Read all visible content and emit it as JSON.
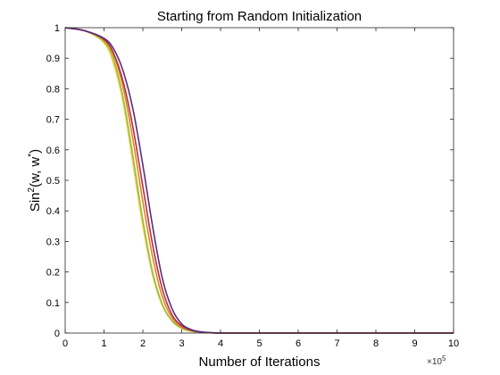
{
  "chart_data": {
    "type": "line",
    "title": "Starting from Random Initialization",
    "xlabel": "Number of Iterations",
    "ylabel_base": "Sin",
    "ylabel_sup": "2",
    "ylabel_rest": "(w, w",
    "ylabel_sup2": "*",
    "ylabel_end": ")",
    "x_multiplier_base": "×10",
    "x_multiplier_exp": "5",
    "xlim": [
      0,
      10
    ],
    "ylim": [
      0,
      1
    ],
    "xticks": [
      0,
      1,
      2,
      3,
      4,
      5,
      6,
      7,
      8,
      9,
      10
    ],
    "yticks": [
      0,
      0.1,
      0.2,
      0.3,
      0.4,
      0.5,
      0.6,
      0.7,
      0.8,
      0.9,
      1
    ],
    "grid": false,
    "x": [
      0,
      0.5,
      1.0,
      1.25,
      1.5,
      1.75,
      2.0,
      2.25,
      2.5,
      2.75,
      3.0,
      3.25,
      3.5,
      3.75,
      4.0,
      4.5,
      5,
      6,
      7,
      8,
      9,
      10
    ],
    "series": [
      {
        "color": "#f2cf4a",
        "values": [
          1.0,
          0.99,
          0.95,
          0.88,
          0.75,
          0.55,
          0.35,
          0.19,
          0.09,
          0.04,
          0.015,
          0.006,
          0.003,
          0.001,
          0.0,
          0.0,
          0.0,
          0.0,
          0.0,
          0.0,
          0.0,
          0.0
        ]
      },
      {
        "color": "#9bbd3a",
        "values": [
          1.0,
          0.99,
          0.955,
          0.895,
          0.765,
          0.575,
          0.37,
          0.2,
          0.095,
          0.04,
          0.016,
          0.006,
          0.003,
          0.001,
          0.0,
          0.0,
          0.0,
          0.0,
          0.0,
          0.0,
          0.0,
          0.0
        ]
      },
      {
        "color": "#e2802c",
        "values": [
          1.0,
          0.99,
          0.96,
          0.91,
          0.8,
          0.63,
          0.43,
          0.25,
          0.12,
          0.05,
          0.02,
          0.008,
          0.003,
          0.001,
          0.0,
          0.0,
          0.0,
          0.0,
          0.0,
          0.0,
          0.0,
          0.0
        ]
      },
      {
        "color": "#b5323a",
        "values": [
          1.0,
          0.99,
          0.962,
          0.915,
          0.82,
          0.67,
          0.48,
          0.29,
          0.145,
          0.06,
          0.024,
          0.009,
          0.003,
          0.001,
          0.0,
          0.0,
          0.0,
          0.0,
          0.0,
          0.0,
          0.0,
          0.0
        ]
      },
      {
        "color": "#5a2d7f",
        "values": [
          1.0,
          0.99,
          0.965,
          0.93,
          0.855,
          0.73,
          0.55,
          0.35,
          0.18,
          0.08,
          0.03,
          0.011,
          0.004,
          0.001,
          0.0,
          0.0,
          0.0,
          0.0,
          0.0,
          0.0,
          0.0,
          0.0
        ]
      }
    ]
  }
}
